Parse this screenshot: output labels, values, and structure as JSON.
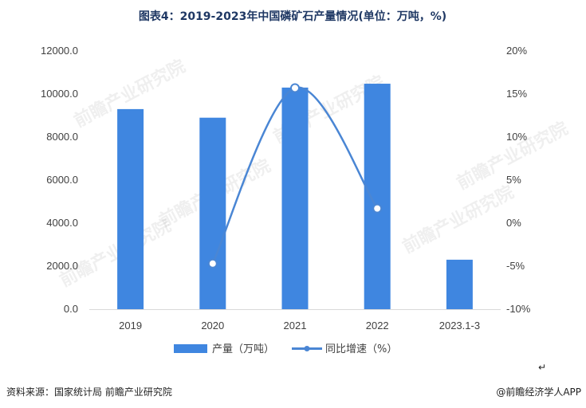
{
  "title": "图表4：2019-2023年中国磷矿石产量情况(单位：万吨，%)",
  "source": "资料来源：国家统计局 前瞻产业研究院",
  "brand": "@前瞻经济学人APP",
  "watermark": "前瞻产业研究院",
  "corner_mark": "↵",
  "colors": {
    "bar": "#3f86e0",
    "line": "#4a86d4",
    "title": "#1f3864"
  },
  "chart_data": {
    "type": "bar+line",
    "categories": [
      "2019",
      "2020",
      "2021",
      "2022",
      "2023.1-3"
    ],
    "series": [
      {
        "name": "产量（万吨）",
        "type": "bar",
        "axis": "left",
        "values": [
          9300,
          8900,
          10300,
          10480,
          2300
        ]
      },
      {
        "name": "同比增速（%）",
        "type": "line",
        "axis": "right",
        "values": [
          null,
          -4.7,
          15.7,
          1.7,
          null
        ]
      }
    ],
    "y_left": {
      "min": 0,
      "max": 12000,
      "step": 2000,
      "tick_labels": [
        "0.0",
        "2000.0",
        "4000.0",
        "6000.0",
        "8000.0",
        "10000.0",
        "12000.0"
      ]
    },
    "y_right": {
      "min": -10,
      "max": 20,
      "step": 5,
      "tick_labels": [
        "-10%",
        "-5%",
        "0%",
        "5%",
        "10%",
        "15%",
        "20%"
      ]
    },
    "legend_position": "bottom",
    "grid": false
  }
}
